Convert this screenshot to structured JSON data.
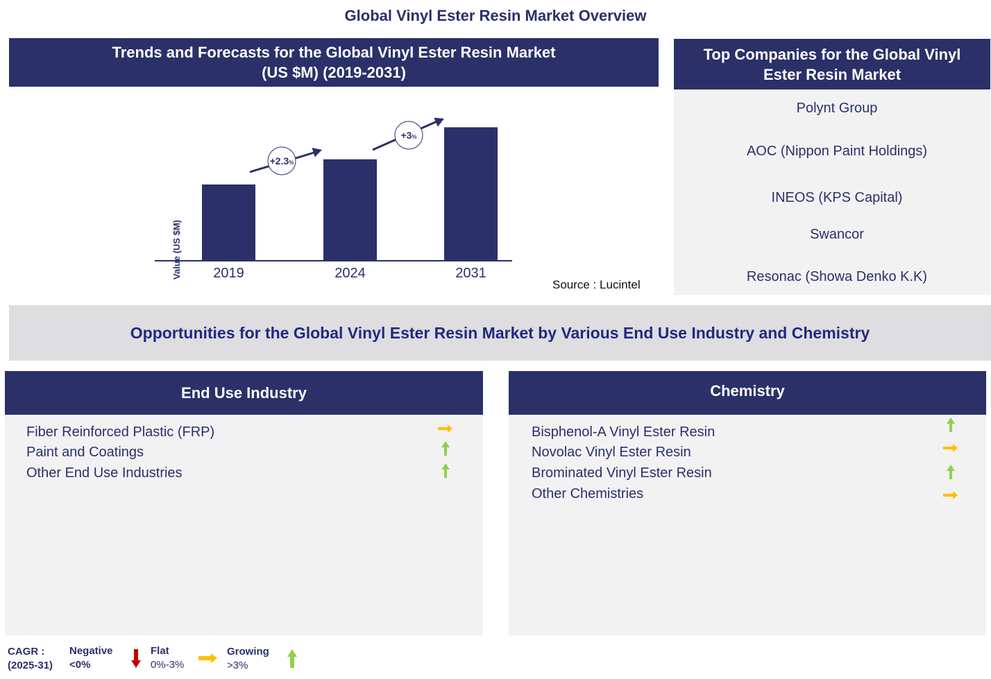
{
  "title": "Global Vinyl Ester Resin Market Overview",
  "trends": {
    "title_line1": "Trends and Forecasts for the Global Vinyl Ester Resin Market",
    "title_line2": "(US $M) (2019-2031)",
    "source": "Source : Lucintel"
  },
  "chart_data": {
    "type": "bar",
    "categories": [
      "2019",
      "2024",
      "2031"
    ],
    "values": [
      1.0,
      1.33,
      1.75
    ],
    "ylabel": "Value (US $M)",
    "annotations": [
      {
        "from": "2019",
        "to": "2024",
        "label": "+2.3",
        "unit": "%"
      },
      {
        "from": "2024",
        "to": "2031",
        "label": "+3",
        "unit": "%"
      }
    ],
    "bar_color": "#2b3069",
    "grid": false
  },
  "companies": {
    "title_line1": "Top Companies for the Global Vinyl",
    "title_line2": "Ester Resin Market",
    "items": [
      "Polynt Group",
      "AOC (Nippon  Paint Holdings)",
      "INEOS (KPS Capital)",
      "Swancor",
      "Resonac (Showa Denko K.K)"
    ]
  },
  "opportunities": {
    "title": "Opportunities for the Global Vinyl Ester Resin Market by Various End Use Industry and Chemistry"
  },
  "end_use": {
    "title": "End Use Industry",
    "items": [
      {
        "label": "Fiber Reinforced Plastic (FRP)",
        "trend": "flat"
      },
      {
        "label": "Paint and Coatings",
        "trend": "growing"
      },
      {
        "label": "Other End Use Industries",
        "trend": "growing"
      }
    ]
  },
  "chemistry": {
    "title": "Chemistry",
    "items": [
      {
        "label": "Bisphenol-A Vinyl Ester Resin",
        "trend": "growing"
      },
      {
        "label": "Novolac Vinyl Ester Resin",
        "trend": "flat"
      },
      {
        "label": "Brominated Vinyl Ester Resin",
        "trend": "growing"
      },
      {
        "label": "Other Chemistries",
        "trend": "flat"
      }
    ]
  },
  "legend": {
    "cagr": "CAGR  :",
    "period": "(2025-31)",
    "negative": "Negative",
    "negative_range": "<0%",
    "flat": "Flat",
    "flat_range": "0%-3%",
    "growing": "Growing",
    "growing_range": ">3%"
  },
  "colors": {
    "navy": "#2b3069",
    "negative": "#c00000",
    "flat": "#ffc000",
    "growing": "#92d050"
  }
}
